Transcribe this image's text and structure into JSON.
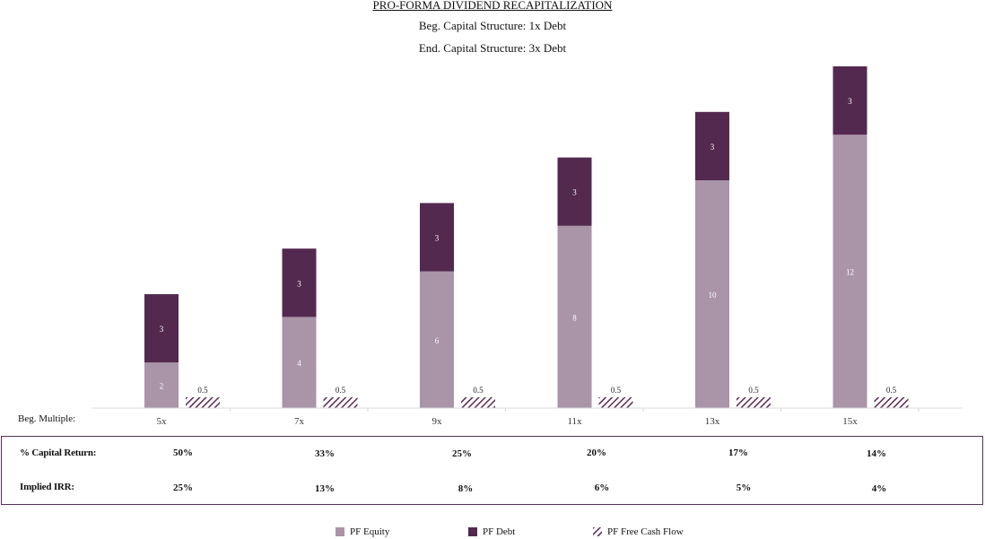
{
  "header": {
    "title": "PRO-FORMA DIVIDEND RECAPITALIZATION",
    "subtitle1": "Beg. Capital Structure: 1x Debt",
    "subtitle2": "End. Capital Structure: 3x Debt"
  },
  "colors": {
    "equity": "#a994a8",
    "debt": "#53294f",
    "fcf": "#5a2a55",
    "axis": "#d8d8d8",
    "box_border": "#5b2d5e"
  },
  "chart_data": {
    "type": "bar",
    "stacked": true,
    "x_axis_label": "Beg. Multiple:",
    "categories": [
      "5x",
      "7x",
      "9x",
      "11x",
      "13x",
      "15x"
    ],
    "series": [
      {
        "name": "PF Equity",
        "values": [
          2,
          4,
          6,
          8,
          10,
          12
        ],
        "stack": "capital",
        "pattern": "solid"
      },
      {
        "name": "PF Debt",
        "values": [
          3,
          3,
          3,
          3,
          3,
          3
        ],
        "stack": "capital",
        "pattern": "solid"
      },
      {
        "name": "PF Free Cash Flow",
        "values": [
          0.5,
          0.5,
          0.5,
          0.5,
          0.5,
          0.5
        ],
        "stack": "fcf",
        "pattern": "hatched"
      }
    ],
    "data_labels": {
      "equity": [
        "2",
        "4",
        "6",
        "8",
        "10",
        "12"
      ],
      "debt": [
        "3",
        "3",
        "3",
        "3",
        "3",
        "3"
      ],
      "fcf": [
        "0.5",
        "0.5",
        "0.5",
        "0.5",
        "0.5",
        "0.5"
      ]
    },
    "ylim": [
      0,
      15
    ],
    "grid": false,
    "legend_position": "bottom-center"
  },
  "metrics": {
    "capital_return": {
      "label": "% Capital Return:",
      "values": [
        "50%",
        "33%",
        "25%",
        "20%",
        "17%",
        "14%"
      ]
    },
    "implied_irr": {
      "label": "Implied IRR:",
      "values": [
        "25%",
        "13%",
        "8%",
        "6%",
        "5%",
        "4%"
      ]
    }
  },
  "legend": {
    "equity": "PF Equity",
    "debt": "PF Debt",
    "fcf": "PF Free Cash Flow"
  }
}
